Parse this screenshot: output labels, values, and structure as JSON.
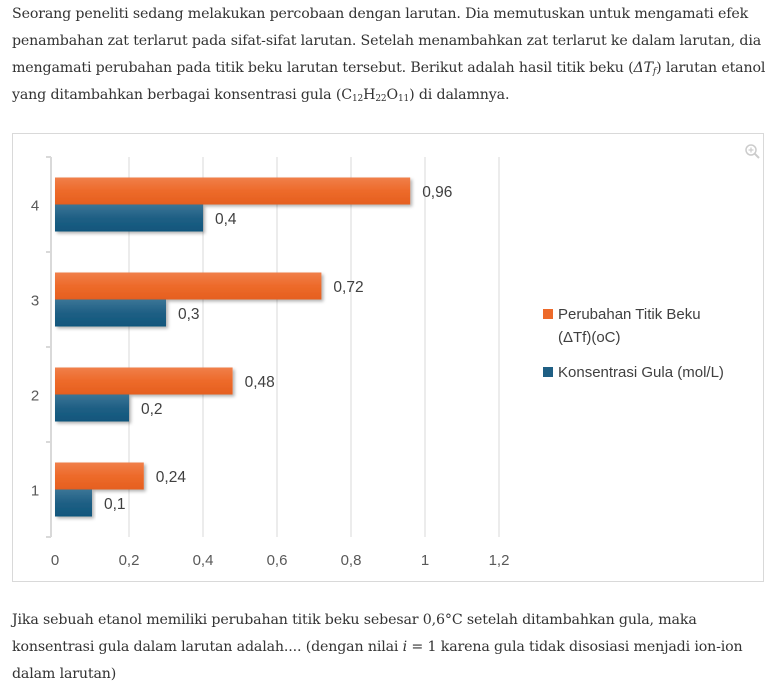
{
  "question": {
    "intro_parts": [
      "Seorang peneliti sedang melakukan percobaan dengan larutan. Dia memutuskan untuk mengamati efek penambahan zat terlarut pada sifat-sifat larutan. Setelah menambahkan zat terlarut ke dalam larutan, dia mengamati perubahan pada titik beku larutan tersebut. Berikut adalah hasil titik beku (",
      "ΔT",
      "f",
      ") larutan etanol yang ditambahkan berbagai konsentrasi gula (C",
      "12",
      "H",
      "22",
      "O",
      "11",
      ") di dalamnya."
    ],
    "prompt_parts": [
      "Jika sebuah etanol memiliki perubahan titik beku sebesar ",
      "0,6°C",
      " setelah ditambahkan gula, maka konsentrasi gula dalam larutan adalah.... (dengan nilai ",
      "i",
      " = 1",
      " karena gula tidak disosiasi menjadi ion-ion dalam larutan)"
    ]
  },
  "zoom_icon": "zoom-in-icon",
  "colors": {
    "orange": "#ED6A2A",
    "blue": "#1F5F84",
    "grid": "#d9d9d9",
    "text": "#595959"
  },
  "chart_data": {
    "type": "bar",
    "orientation": "horizontal",
    "categories": [
      "1",
      "2",
      "3",
      "4"
    ],
    "series": [
      {
        "name": "Perubahan Titik Beku (ΔTf)(oC)",
        "legend_lines": [
          "Perubahan Titik Beku",
          "(ΔTf)(oC)"
        ],
        "color": "#ED6A2A",
        "values": [
          0.24,
          0.48,
          0.72,
          0.96
        ],
        "labels": [
          "0,24",
          "0,48",
          "0,72",
          "0,96"
        ]
      },
      {
        "name": "Konsentrasi Gula (mol/L)",
        "legend_lines": [
          "Konsentrasi Gula (mol/L)"
        ],
        "color": "#1F5F84",
        "values": [
          0.1,
          0.2,
          0.3,
          0.4
        ],
        "labels": [
          "0,1",
          "0,2",
          "0,3",
          "0,4"
        ]
      }
    ],
    "xlim": [
      0,
      1.2
    ],
    "xticks": [
      0,
      0.2,
      0.4,
      0.6,
      0.8,
      1,
      1.2
    ],
    "xtick_labels": [
      "0",
      "0,2",
      "0,4",
      "0,6",
      "0,8",
      "1",
      "1,2"
    ],
    "grid": true,
    "legend": "right",
    "title": "",
    "xlabel": "",
    "ylabel": ""
  }
}
